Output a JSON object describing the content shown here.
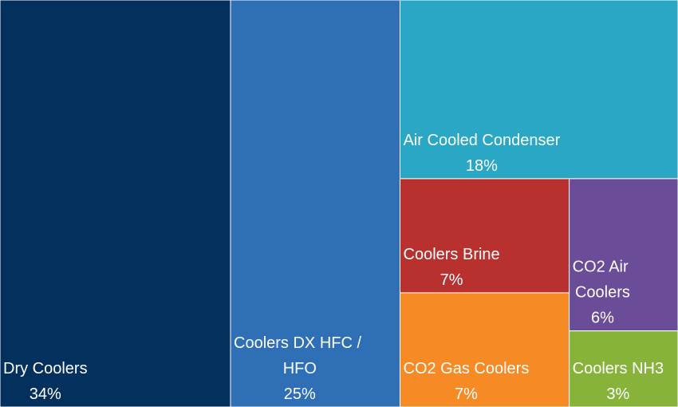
{
  "chart_data": {
    "type": "treemap",
    "categories": [
      "Dry Coolers",
      "Coolers DX HFC / HFO",
      "Air Cooled Condenser",
      "Coolers Brine",
      "CO2 Gas Coolers",
      "CO2 Air Coolers",
      "Coolers NH3"
    ],
    "values": [
      34,
      25,
      18,
      7,
      7,
      6,
      3
    ],
    "value_labels": [
      "34%",
      "25%",
      "18%",
      "7%",
      "7%",
      "6%",
      "3%"
    ],
    "colors": [
      "#04305e",
      "#2e6fb6",
      "#2aa7c4",
      "#b8312f",
      "#f68a24",
      "#6a4c98",
      "#87b33b"
    ]
  }
}
